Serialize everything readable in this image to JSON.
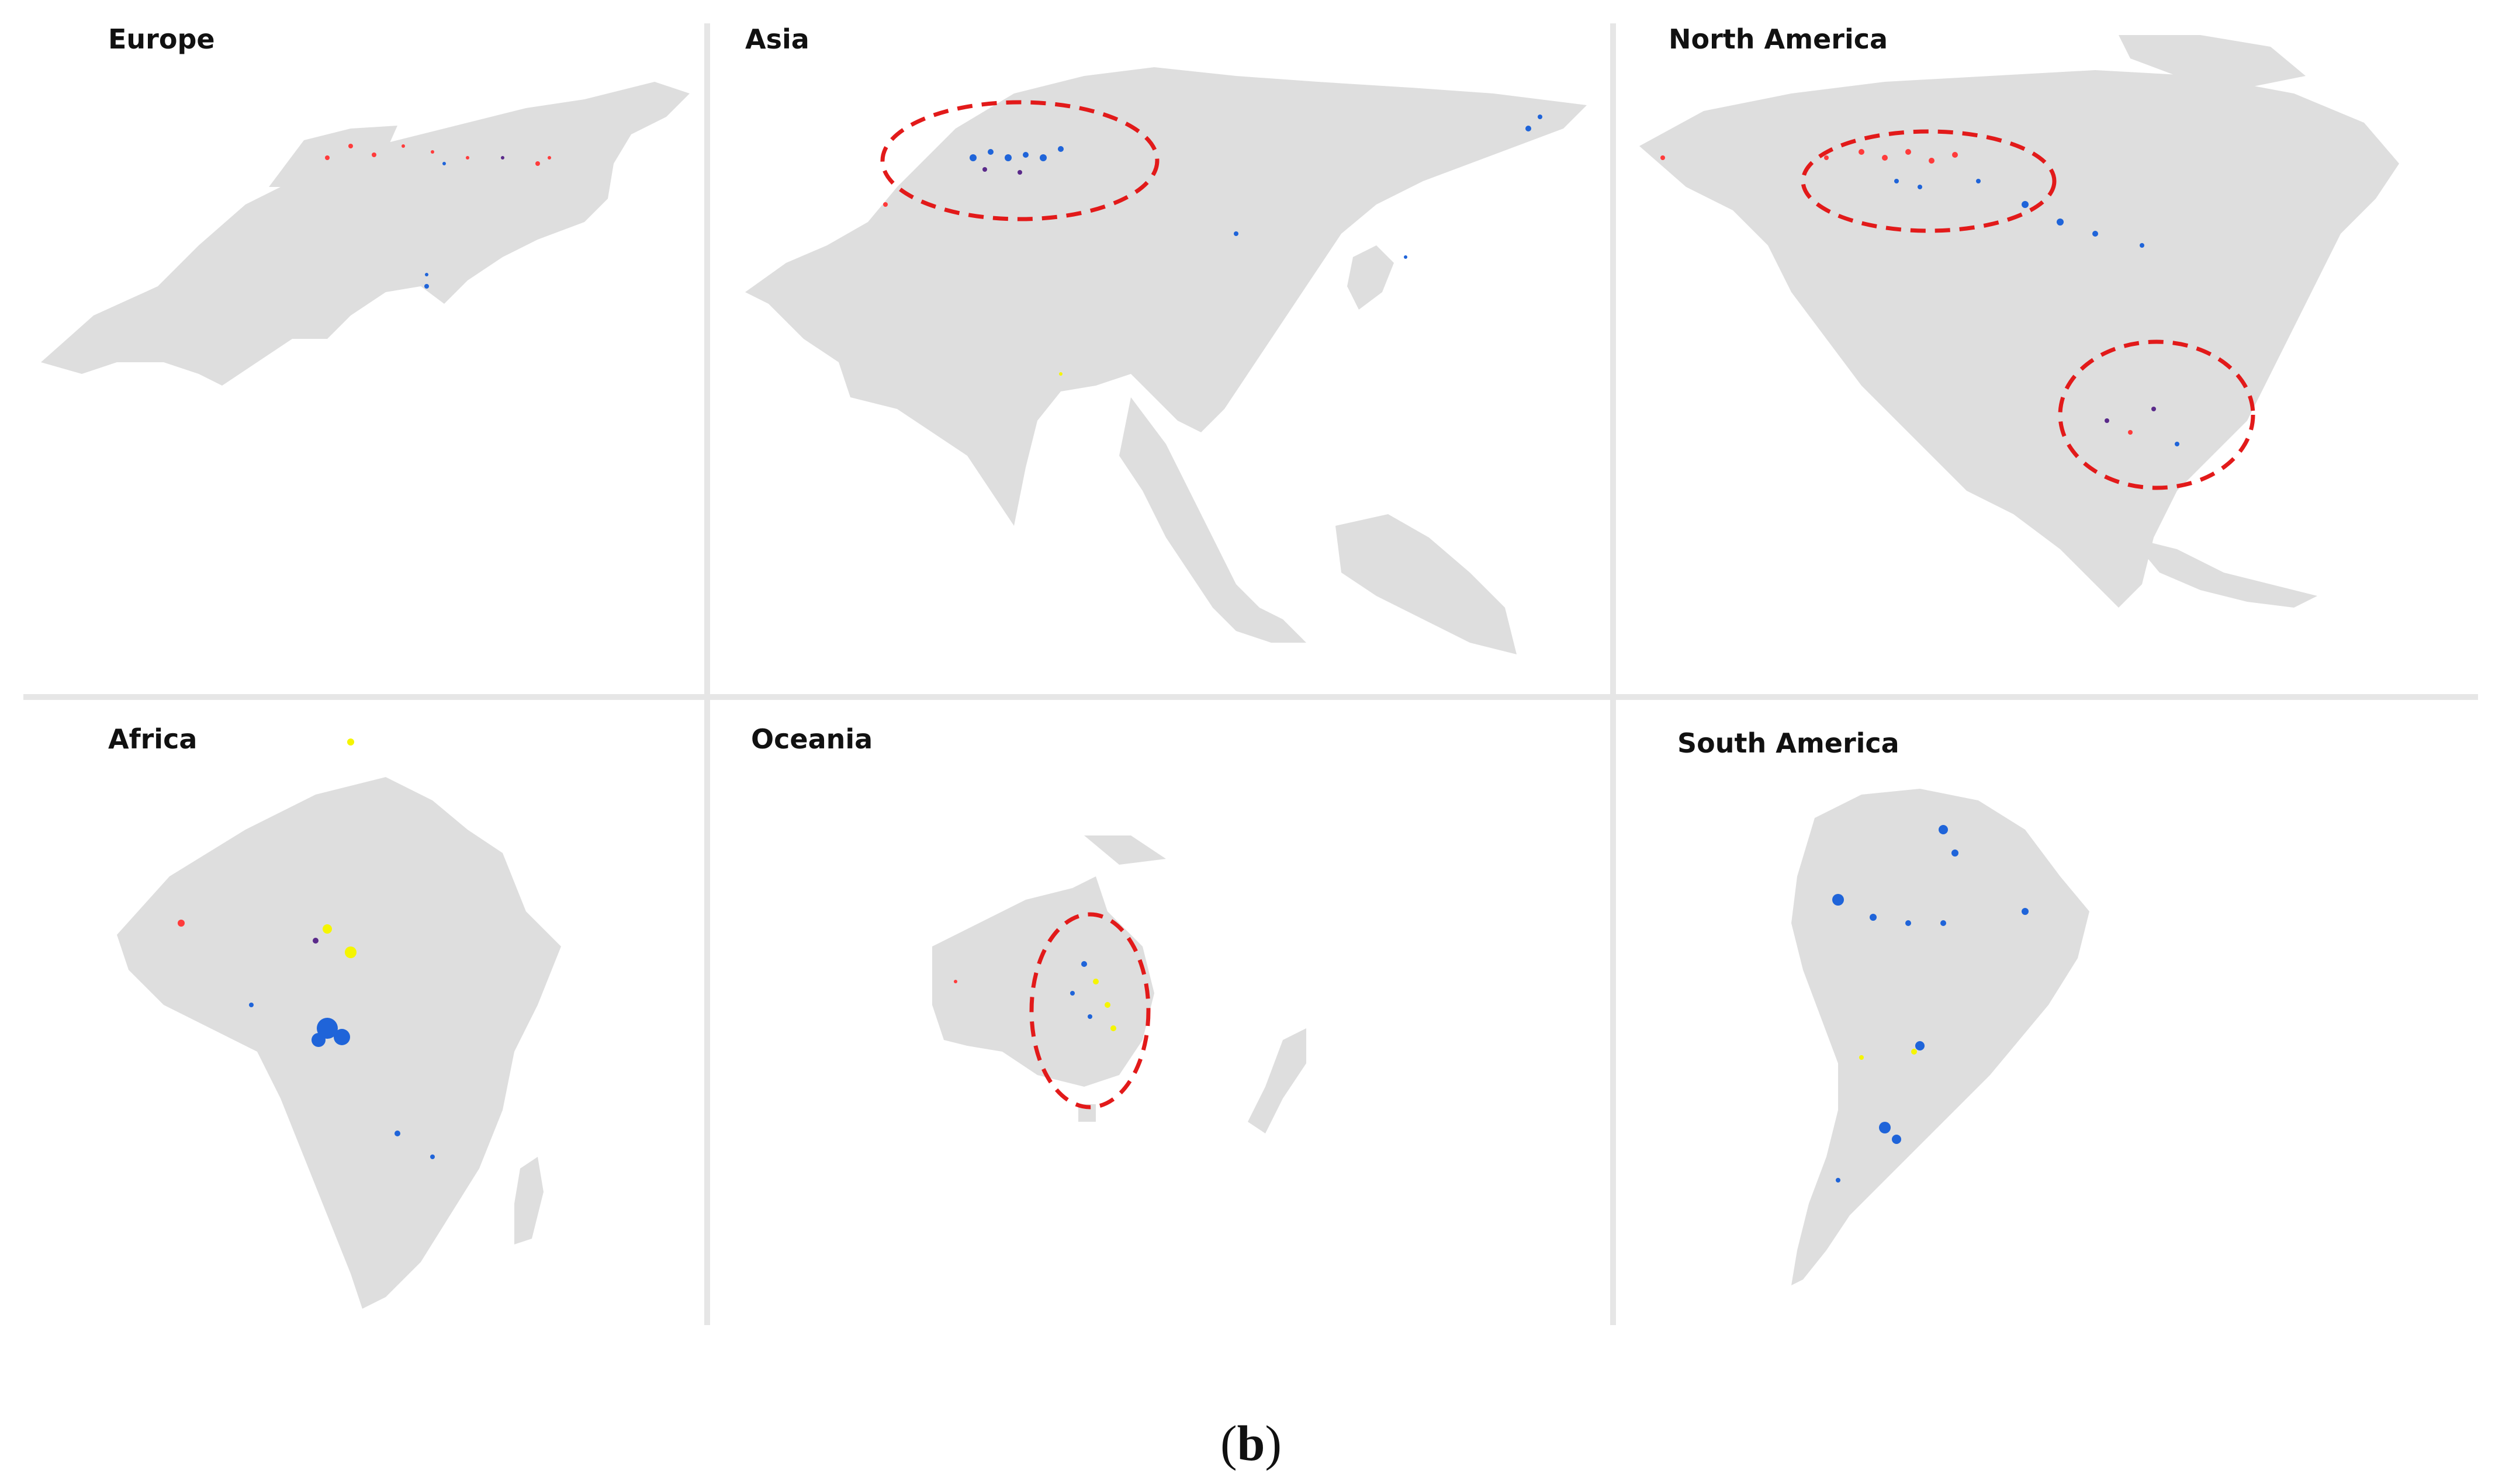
{
  "figure": {
    "caption_open": "(",
    "caption_label": "b",
    "caption_close": ")"
  },
  "colors": {
    "land": "#dedede",
    "divider": "#e6e6e6",
    "highlight_ellipse": "#e21a1a",
    "class_blue": "#1f64d9",
    "class_red": "#ff3b3b",
    "class_yellow": "#f5f500",
    "class_purple": "#5a2a8a"
  },
  "panels": [
    {
      "id": "europe",
      "title": "Europe"
    },
    {
      "id": "asia",
      "title": "Asia"
    },
    {
      "id": "north-america",
      "title": "North America"
    },
    {
      "id": "africa",
      "title": "Africa"
    },
    {
      "id": "oceania",
      "title": "Oceania"
    },
    {
      "id": "south-america",
      "title": "South America"
    }
  ]
}
